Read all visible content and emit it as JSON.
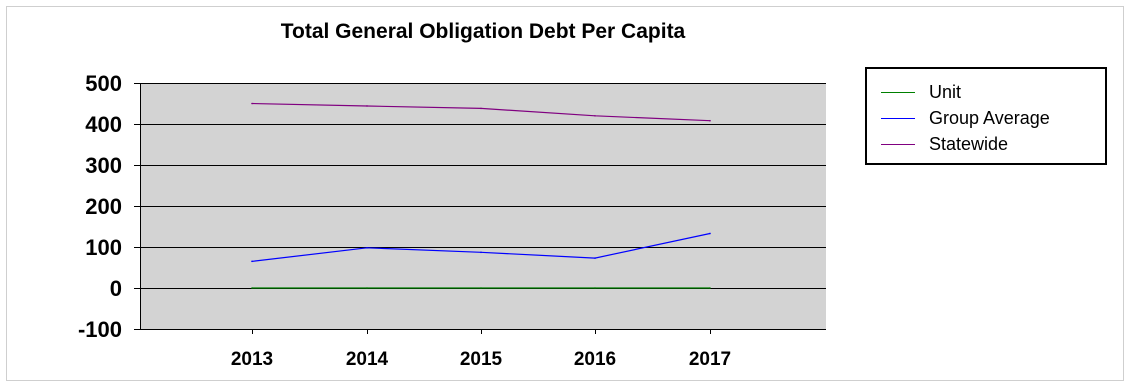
{
  "chart_data": {
    "type": "line",
    "title": "Total General Obligation Debt Per Capita",
    "xlabel": "",
    "ylabel": "",
    "x": [
      "2013",
      "2014",
      "2015",
      "2016",
      "2017"
    ],
    "ylim": [
      -100,
      500
    ],
    "yticks": [
      500,
      400,
      300,
      200,
      100,
      0,
      -100
    ],
    "grid": true,
    "legend_position": "right",
    "plot_background": "#d3d3d3",
    "series": [
      {
        "name": "Unit",
        "color": "#008000",
        "values": [
          0,
          0,
          0,
          0,
          0
        ]
      },
      {
        "name": "Group Average",
        "color": "#0000ff",
        "values": [
          65,
          98,
          87,
          73,
          133
        ]
      },
      {
        "name": "Statewide",
        "color": "#800080",
        "values": [
          450,
          444,
          438,
          420,
          408
        ]
      }
    ]
  }
}
